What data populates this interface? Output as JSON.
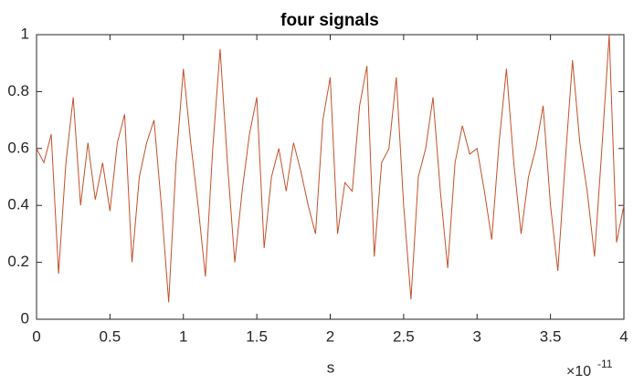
{
  "chart_data": {
    "type": "line",
    "title": "four signals",
    "x_label": "s",
    "x_multiplier": "×10",
    "x_multiplier_exponent": "-11",
    "xlim": [
      0,
      4
    ],
    "xticks": [
      0,
      0.5,
      1,
      1.5,
      2,
      2.5,
      3,
      3.5,
      4
    ],
    "ylim": [
      0,
      1
    ],
    "yticks": [
      0,
      0.2,
      0.4,
      0.6,
      0.8,
      1
    ],
    "box": true,
    "series": [
      {
        "color": "#c4502a",
        "x": [
          0,
          0.05,
          0.1,
          0.15,
          0.2,
          0.25,
          0.3,
          0.35,
          0.4,
          0.45,
          0.5,
          0.55,
          0.6,
          0.65,
          0.7,
          0.75,
          0.8,
          0.85,
          0.9,
          0.95,
          1,
          1.05,
          1.1,
          1.15,
          1.2,
          1.25,
          1.3,
          1.35,
          1.4,
          1.45,
          1.5,
          1.55,
          1.6,
          1.65,
          1.7,
          1.75,
          1.8,
          1.85,
          1.9,
          1.95,
          2,
          2.05,
          2.1,
          2.15,
          2.2,
          2.25,
          2.3,
          2.35,
          2.4,
          2.45,
          2.5,
          2.55,
          2.6,
          2.65,
          2.7,
          2.75,
          2.8,
          2.85,
          2.9,
          2.95,
          3,
          3.05,
          3.1,
          3.15,
          3.2,
          3.25,
          3.3,
          3.35,
          3.4,
          3.45,
          3.5,
          3.55,
          3.6,
          3.65,
          3.7,
          3.75,
          3.8,
          3.85,
          3.9,
          3.95,
          4
        ],
        "values": [
          0.6,
          0.55,
          0.65,
          0.16,
          0.55,
          0.78,
          0.4,
          0.62,
          0.42,
          0.55,
          0.38,
          0.62,
          0.72,
          0.2,
          0.5,
          0.62,
          0.7,
          0.4,
          0.06,
          0.55,
          0.88,
          0.62,
          0.4,
          0.15,
          0.6,
          0.95,
          0.55,
          0.2,
          0.45,
          0.65,
          0.78,
          0.25,
          0.5,
          0.6,
          0.45,
          0.62,
          0.52,
          0.4,
          0.3,
          0.7,
          0.85,
          0.3,
          0.48,
          0.45,
          0.75,
          0.89,
          0.22,
          0.55,
          0.6,
          0.85,
          0.4,
          0.07,
          0.5,
          0.6,
          0.78,
          0.45,
          0.18,
          0.55,
          0.68,
          0.58,
          0.6,
          0.45,
          0.28,
          0.62,
          0.88,
          0.55,
          0.3,
          0.5,
          0.6,
          0.75,
          0.4,
          0.17,
          0.55,
          0.91,
          0.62,
          0.45,
          0.22,
          0.6,
          1.0,
          0.27,
          0.4
        ]
      }
    ]
  }
}
